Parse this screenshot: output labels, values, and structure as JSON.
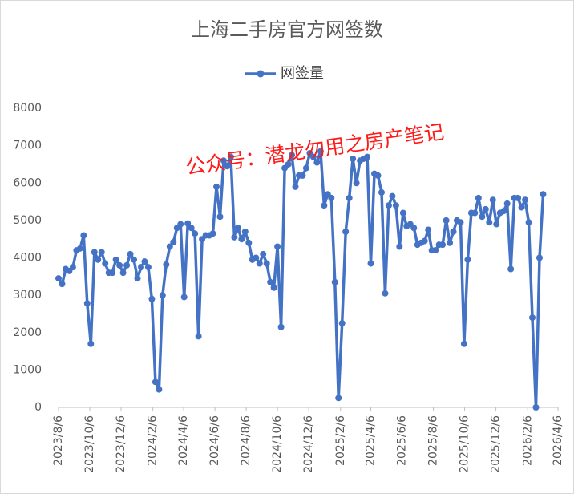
{
  "chart_data": {
    "type": "line",
    "title": "上海二手房官方网签数",
    "annotation": "公众号：潜龙勿用之房产笔记",
    "x": [
      "2023/8/6",
      "2023/8/13",
      "2023/8/20",
      "2023/8/27",
      "2023/9/3",
      "2023/9/10",
      "2023/9/17",
      "2023/9/24",
      "2023/10/1",
      "2023/10/8",
      "2023/10/15",
      "2023/10/22",
      "2023/10/29",
      "2023/11/5",
      "2023/11/12",
      "2023/11/19",
      "2023/11/26",
      "2023/12/3",
      "2023/12/10",
      "2023/12/17",
      "2023/12/24",
      "2023/12/31",
      "2024/1/7",
      "2024/1/14",
      "2024/1/21",
      "2024/1/28",
      "2024/2/4",
      "2024/2/11",
      "2024/2/18",
      "2024/2/25",
      "2024/3/3",
      "2024/3/10",
      "2024/3/17",
      "2024/3/24",
      "2024/3/31",
      "2024/4/7",
      "2024/4/14",
      "2024/4/21",
      "2024/4/28",
      "2024/5/5",
      "2024/5/12",
      "2024/5/19",
      "2024/5/26",
      "2024/6/2",
      "2024/6/9",
      "2024/6/16",
      "2024/6/23",
      "2024/6/30",
      "2024/7/7",
      "2024/7/14",
      "2024/7/21",
      "2024/7/28",
      "2024/8/4",
      "2024/8/11",
      "2024/8/18",
      "2024/8/25",
      "2024/9/1",
      "2024/9/8",
      "2024/9/15",
      "2024/9/22",
      "2024/9/29",
      "2024/10/6",
      "2024/10/13",
      "2024/10/20",
      "2024/10/27",
      "2024/11/3",
      "2024/11/10",
      "2024/11/17",
      "2024/11/24",
      "2024/12/1",
      "2024/12/8",
      "2024/12/15",
      "2024/12/22",
      "2024/12/29",
      "2025/1/5",
      "2025/1/12",
      "2025/1/19",
      "2025/1/26",
      "2025/2/2",
      "2025/2/9",
      "2025/2/16",
      "2025/2/23",
      "2025/3/2",
      "2025/3/9",
      "2025/3/16",
      "2025/3/23",
      "2025/3/30",
      "2025/4/6",
      "2025/4/13",
      "2025/4/20",
      "2025/4/27",
      "2025/5/4",
      "2025/5/11",
      "2025/5/18",
      "2025/5/25",
      "2025/6/1",
      "2025/6/8",
      "2025/6/15",
      "2025/6/22",
      "2025/6/29",
      "2025/7/6",
      "2025/7/13",
      "2025/7/20",
      "2025/7/27",
      "2025/8/3",
      "2025/8/10",
      "2025/8/17",
      "2025/8/24",
      "2025/8/31",
      "2025/9/7",
      "2025/9/14",
      "2025/9/21",
      "2025/9/28",
      "2025/10/5",
      "2025/10/12",
      "2025/10/19",
      "2025/10/26",
      "2025/11/2",
      "2025/11/9",
      "2025/11/16",
      "2025/11/23",
      "2025/11/30",
      "2025/12/7",
      "2025/12/14",
      "2025/12/21",
      "2025/12/28",
      "2026/1/4",
      "2026/1/11",
      "2026/1/18",
      "2026/1/25",
      "2026/2/1",
      "2026/2/8",
      "2026/2/15",
      "2026/2/22",
      "2026/3/1",
      "2026/3/8"
    ],
    "series": [
      {
        "name": "网签量",
        "color": "#4472c4",
        "values": [
          3450,
          3300,
          3700,
          3650,
          3750,
          4200,
          4250,
          4600,
          2780,
          1700,
          4150,
          3950,
          4150,
          3850,
          3600,
          3600,
          3950,
          3800,
          3600,
          3800,
          4100,
          3950,
          3450,
          3750,
          3900,
          3750,
          2900,
          680,
          480,
          3000,
          3820,
          4300,
          4420,
          4800,
          4900,
          2950,
          4920,
          4800,
          4650,
          1900,
          4500,
          4600,
          4600,
          4650,
          5900,
          5100,
          6600,
          6450,
          6700,
          4550,
          4800,
          4500,
          4700,
          4400,
          3950,
          4000,
          3850,
          4100,
          3850,
          3350,
          3200,
          4300,
          2150,
          6400,
          6500,
          6750,
          5900,
          6200,
          6200,
          6400,
          6800,
          6700,
          6550,
          6850,
          5400,
          5700,
          5600,
          3350,
          250,
          2250,
          4700,
          5600,
          6650,
          6000,
          6600,
          6650,
          6700,
          3850,
          6250,
          6200,
          5750,
          3050,
          5400,
          5650,
          5400,
          4300,
          5200,
          4850,
          4900,
          4800,
          4350,
          4400,
          4450,
          4750,
          4200,
          4200,
          4350,
          4350,
          5000,
          4400,
          4700,
          5000,
          4950,
          1700,
          3950,
          5200,
          5200,
          5600,
          5100,
          5300,
          4950,
          5550,
          4900,
          5200,
          5250,
          5450,
          3700,
          5600,
          5600,
          5350,
          5550,
          4950,
          2400,
          0,
          4000,
          5700
        ]
      }
    ],
    "xlim": [
      "2023/8/6",
      "2026/4/6"
    ],
    "xticks": [
      "2023/8/6",
      "2023/10/6",
      "2023/12/6",
      "2024/2/6",
      "2024/4/6",
      "2024/6/6",
      "2024/8/6",
      "2024/10/6",
      "2024/12/6",
      "2025/2/6",
      "2025/4/6",
      "2025/6/6",
      "2025/8/6",
      "2025/10/6",
      "2025/12/6",
      "2026/2/6",
      "2026/4/6"
    ],
    "ylim": [
      0,
      8000
    ],
    "yticks": [
      0,
      1000,
      2000,
      3000,
      4000,
      5000,
      6000,
      7000,
      8000
    ],
    "grid": false,
    "legend": "top"
  }
}
